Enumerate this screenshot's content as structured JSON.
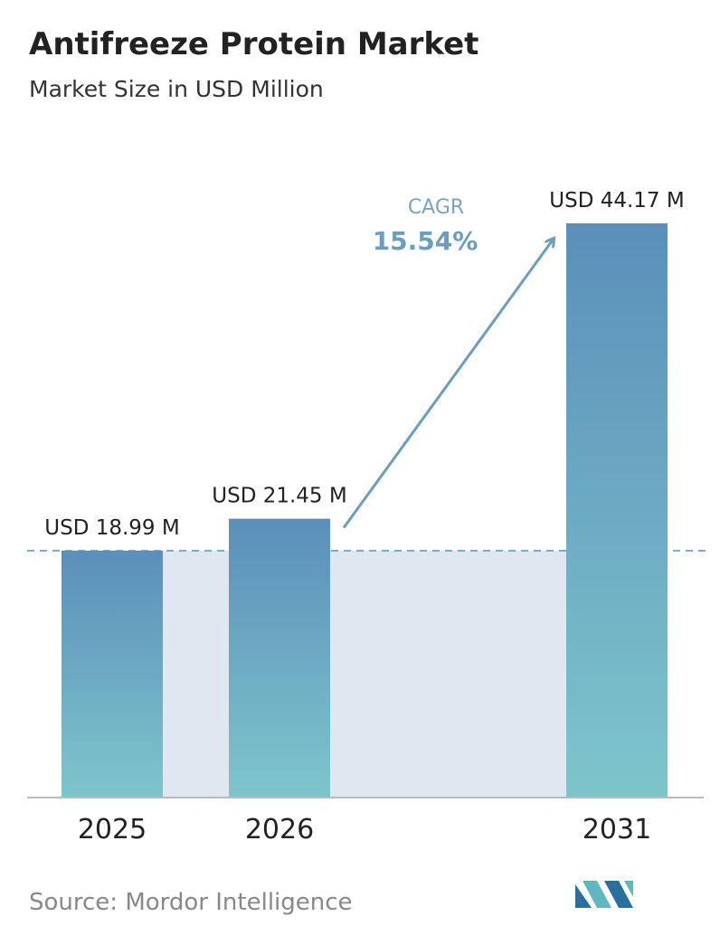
{
  "chart_data": {
    "type": "bar",
    "title": "Antifreeze Protein Market",
    "subtitle": "Market Size in USD Million",
    "categories": [
      "2025",
      "2026",
      "2031"
    ],
    "values": [
      18.99,
      21.45,
      44.17
    ],
    "value_labels": [
      "USD 18.99 M",
      "USD 21.45 M",
      "USD 44.17 M"
    ],
    "annotation": {
      "label": "CAGR",
      "value": "15.54%"
    },
    "source": "Source:  Mordor Intelligence"
  }
}
